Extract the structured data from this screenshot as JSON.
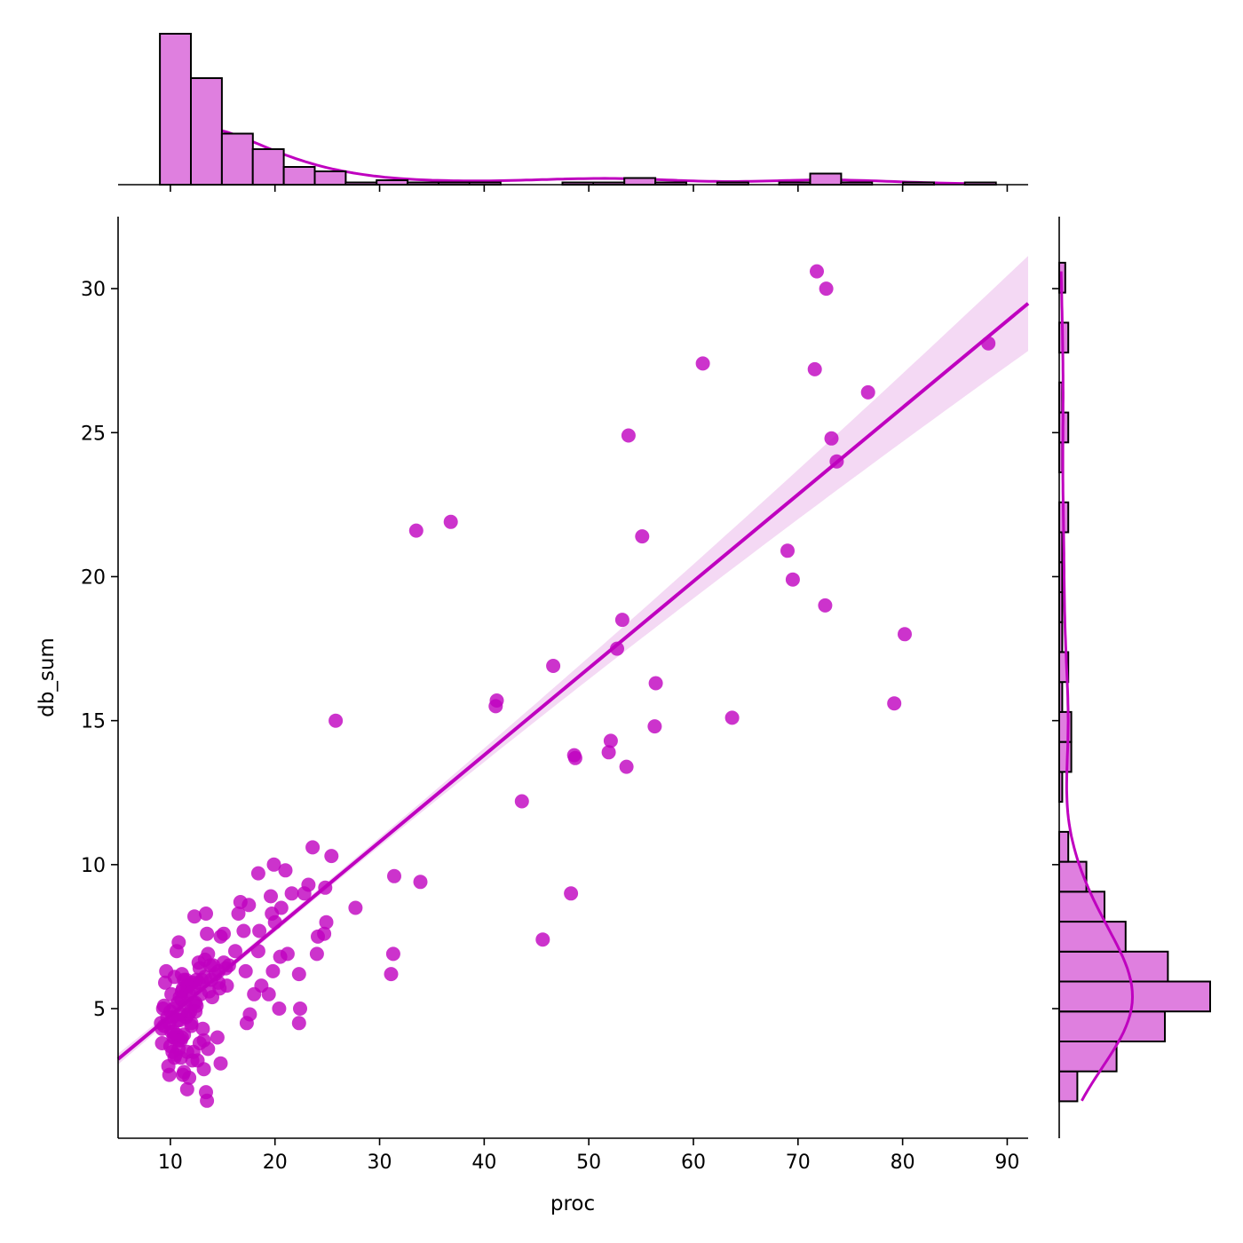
{
  "chart_data": {
    "type": "scatter",
    "title": "",
    "xlabel": "proc",
    "ylabel": "db_sum",
    "xlim": [
      5,
      92
    ],
    "ylim": [
      0.5,
      32.5
    ],
    "x_ticks": [
      10,
      20,
      30,
      40,
      50,
      60,
      70,
      80,
      90
    ],
    "y_ticks": [
      5,
      10,
      15,
      20,
      25,
      30
    ],
    "grid": false,
    "legend": "none",
    "colors": {
      "points": "#bf00bf",
      "regression_line": "#bf00bf",
      "confidence_band": "#f2d2f2",
      "hist_fill": "#df7fdf",
      "hist_edge": "#000000"
    },
    "regression": {
      "slope": 0.3016,
      "intercept": 1.74,
      "x_range": [
        5,
        92
      ],
      "ci_halfwidth_at_92": 1.65
    },
    "points": {
      "x": [
        71.8,
        72.7,
        88.2,
        60.9,
        71.6,
        76.7,
        53.8,
        73.2,
        73.7,
        36.8,
        33.5,
        55.1,
        69.0,
        69.5,
        72.6,
        53.2,
        80.2,
        52.7,
        46.6,
        56.4,
        41.2,
        41.1,
        79.2,
        63.7,
        56.3,
        25.8,
        52.1,
        48.6,
        48.7,
        51.9,
        53.6,
        43.6,
        23.6,
        25.4,
        31.4,
        33.9,
        48.3,
        27.7,
        45.6,
        31.3,
        31.1,
        19.9,
        21.0,
        18.4,
        23.2,
        24.8,
        19.6,
        20.6,
        22.8,
        21.6,
        16.7,
        17.5,
        16.5,
        19.7,
        13.4,
        12.3,
        20.0,
        24.9,
        18.5,
        17.0,
        15.1,
        14.8,
        10.8,
        24.7,
        24.1,
        21.2,
        20.5,
        24.0,
        18.4,
        16.2,
        15.6,
        15.3,
        17.2,
        14.6,
        13.0,
        12.7,
        13.9,
        19.8,
        22.3,
        18.7,
        19.4,
        18.0,
        17.6,
        17.3,
        20.4,
        22.4,
        22.3,
        14.5,
        13.2,
        11.6,
        12.1,
        14.8,
        13.2,
        11.3,
        11.8,
        13.4,
        13.5,
        11.6,
        11.2,
        13.6,
        12.2,
        12.6,
        14.7,
        15.4,
        9.3,
        9.4,
        9.2,
        9.8,
        9.9,
        10.2,
        10.4,
        10.1,
        11.1,
        11.3,
        11.6,
        10.7,
        11.5,
        11.1,
        13.8,
        10.9,
        10.3,
        10.4,
        11.0,
        12.0,
        10.0,
        11.0,
        14.0,
        9.6,
        9.1,
        10.3,
        10.8,
        12.8,
        11.5,
        12.4,
        13.1,
        13.3,
        10.6,
        9.5,
        10.3,
        11.1,
        11.8,
        12.5,
        10.2,
        9.9,
        13.5,
        12.7,
        11.1,
        10.9,
        11.2,
        12.5,
        10.1,
        11.8,
        10.4,
        11.5,
        12.3,
        12.0,
        12.9,
        13.6,
        14.1,
        13.3,
        12.2,
        11.7,
        12.8,
        14.3,
        15.1,
        14.6,
        13.7,
        12.4,
        11.3,
        10.7,
        12.1,
        11.4,
        11.0,
        10.5,
        9.7,
        9.4,
        10.0,
        9.2,
        10.6,
        10.8,
        11.9
      ],
      "y": [
        30.6,
        30.0,
        28.1,
        27.4,
        27.2,
        26.4,
        24.9,
        24.8,
        24.0,
        21.9,
        21.6,
        21.4,
        20.9,
        19.9,
        19.0,
        18.5,
        18.0,
        17.5,
        16.9,
        16.3,
        15.7,
        15.5,
        15.6,
        15.1,
        14.8,
        15.0,
        14.3,
        13.8,
        13.7,
        13.9,
        13.4,
        12.2,
        10.6,
        10.3,
        9.6,
        9.4,
        9.0,
        8.5,
        7.4,
        6.9,
        6.2,
        10.0,
        9.8,
        9.7,
        9.3,
        9.2,
        8.9,
        8.5,
        9.0,
        9.0,
        8.7,
        8.6,
        8.3,
        8.3,
        8.3,
        8.2,
        8.0,
        8.0,
        7.7,
        7.7,
        7.6,
        7.5,
        7.3,
        7.6,
        7.5,
        6.9,
        6.8,
        6.9,
        7.0,
        7.0,
        6.5,
        6.4,
        6.3,
        6.3,
        6.0,
        5.9,
        6.0,
        6.3,
        6.2,
        5.8,
        5.5,
        5.5,
        4.8,
        4.5,
        5.0,
        5.0,
        4.5,
        4.0,
        3.9,
        3.5,
        3.2,
        3.1,
        2.9,
        2.8,
        2.6,
        2.1,
        1.8,
        2.2,
        2.7,
        3.6,
        3.5,
        3.2,
        5.7,
        5.8,
        5.0,
        4.4,
        3.8,
        3.0,
        2.7,
        3.5,
        4.0,
        5.5,
        6.2,
        6.0,
        5.8,
        5.2,
        4.7,
        4.0,
        6.5,
        4.6,
        4.2,
        3.3,
        3.3,
        4.5,
        4.9,
        4.8,
        5.4,
        6.3,
        4.5,
        4.0,
        3.6,
        3.8,
        5.6,
        5.2,
        4.3,
        6.7,
        7.0,
        5.9,
        5.0,
        5.6,
        5.5,
        5.1,
        4.7,
        4.5,
        7.6,
        6.6,
        5.3,
        5.4,
        5.7,
        6.0,
        4.2,
        5.8,
        6.1,
        6.0,
        5.7,
        4.4,
        5.5,
        6.9,
        6.5,
        6.1,
        5.2,
        4.8,
        6.4,
        6.2,
        6.6,
        5.9,
        5.6,
        4.9,
        4.1,
        4.6,
        5.9,
        5.1,
        3.9,
        3.4,
        4.7,
        5.1,
        3.7,
        4.3,
        4.1,
        3.9,
        4.9
      ]
    },
    "marginal_x_hist": {
      "bin_edges": [
        9.0,
        11.96,
        14.92,
        17.88,
        20.84,
        23.8,
        26.76,
        29.72,
        32.68,
        35.64,
        38.6,
        41.56,
        44.52,
        47.48,
        50.44,
        53.4,
        56.36,
        59.32,
        62.28,
        65.24,
        68.2,
        71.16,
        74.12,
        77.08,
        80.04,
        83.0,
        85.96,
        88.92
      ],
      "counts": [
        68,
        48,
        23,
        16,
        8,
        6,
        1,
        2,
        1,
        1,
        1,
        0,
        0,
        1,
        1,
        3,
        1,
        0,
        1,
        0,
        1,
        5,
        1,
        0,
        1,
        0,
        1
      ]
    },
    "marginal_y_hist": {
      "bin_edges": [
        1.78,
        2.82,
        3.86,
        4.9,
        5.94,
        6.98,
        8.02,
        9.06,
        10.1,
        11.14,
        12.18,
        13.22,
        14.26,
        15.3,
        16.34,
        17.38,
        18.42,
        19.46,
        20.5,
        21.54,
        22.58,
        23.62,
        24.66,
        25.7,
        26.74,
        27.78,
        28.82,
        29.86,
        30.9
      ],
      "counts": [
        6,
        19,
        35,
        50,
        36,
        22,
        15,
        9,
        3,
        0,
        1,
        4,
        4,
        1,
        3,
        1,
        1,
        1,
        1,
        3,
        0,
        1,
        3,
        1,
        0,
        3,
        0,
        2
      ]
    }
  }
}
